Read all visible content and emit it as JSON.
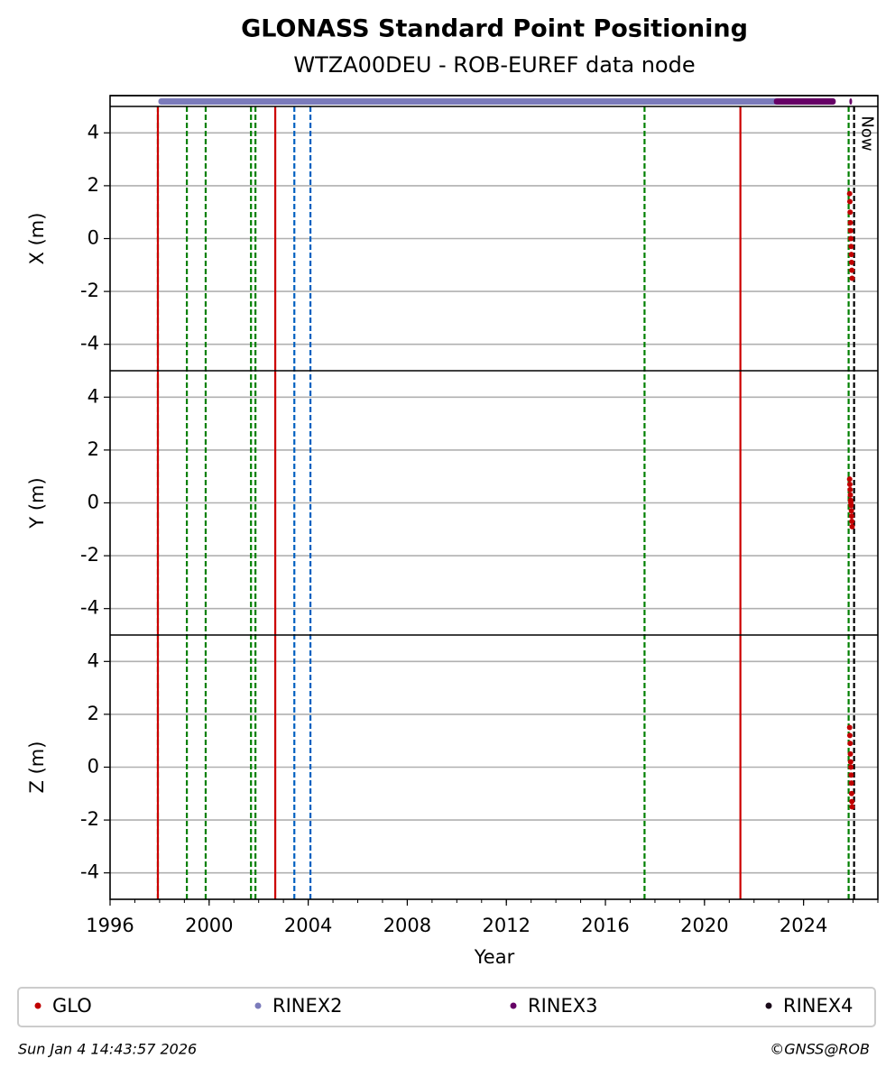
{
  "chart_data": {
    "type": "scatter",
    "title": "GLONASS Standard Point Positioning",
    "subtitle": "WTZA00DEU - ROB-EUREF data node",
    "xlabel": "Year",
    "xlim": [
      1996,
      2027
    ],
    "xticks": [
      1996,
      2000,
      2004,
      2008,
      2012,
      2016,
      2020,
      2024
    ],
    "x": [
      2025.86,
      2025.87,
      2025.88,
      2025.89,
      2025.9,
      2025.91,
      2025.92,
      2025.93,
      2025.94,
      2025.95,
      2025.96
    ],
    "panels": [
      {
        "ylabel": "X (m)",
        "ylim": [
          -5,
          5
        ],
        "yticks": [
          -4,
          -2,
          0,
          2,
          4
        ],
        "values": [
          1.7,
          1.4,
          1.0,
          0.6,
          0.3,
          0.0,
          -0.3,
          -0.6,
          -0.9,
          -1.2,
          -1.5
        ]
      },
      {
        "ylabel": "Y (m)",
        "ylim": [
          -5,
          5
        ],
        "yticks": [
          -4,
          -2,
          0,
          2,
          4
        ],
        "values": [
          0.9,
          0.7,
          0.5,
          0.3,
          0.1,
          0.0,
          -0.1,
          -0.3,
          -0.5,
          -0.7,
          -0.9
        ]
      },
      {
        "ylabel": "Z (m)",
        "ylim": [
          -5,
          5
        ],
        "yticks": [
          -4,
          -2,
          0,
          2,
          4
        ],
        "values": [
          1.5,
          1.2,
          0.9,
          0.5,
          0.2,
          0.0,
          -0.3,
          -0.6,
          -1.0,
          -1.3,
          -1.5
        ]
      }
    ],
    "series": [
      {
        "name": "GLO",
        "color": "#c00000"
      },
      {
        "name": "RINEX2",
        "color": "#7b7bbb",
        "ranges": [
          [
            1997.95,
            2022.95
          ]
        ]
      },
      {
        "name": "RINEX3",
        "color": "#660066",
        "ranges": [
          [
            2022.8,
            2025.3
          ],
          [
            2025.85,
            2025.95
          ]
        ]
      },
      {
        "name": "RINEX4",
        "color": "#1a0a1a",
        "ranges": []
      }
    ],
    "events": [
      {
        "x": 1997.93,
        "color": "#008000",
        "style": "dashed"
      },
      {
        "x": 1997.93,
        "color": "#cc0000",
        "style": "solid"
      },
      {
        "x": 1999.1,
        "color": "#008000",
        "style": "dashed"
      },
      {
        "x": 1999.86,
        "color": "#008000",
        "style": "dashed"
      },
      {
        "x": 2001.69,
        "color": "#008000",
        "style": "dashed"
      },
      {
        "x": 2001.87,
        "color": "#008000",
        "style": "dashed"
      },
      {
        "x": 2002.67,
        "color": "#cc0000",
        "style": "solid"
      },
      {
        "x": 2003.44,
        "color": "#0060c0",
        "style": "dashed"
      },
      {
        "x": 2004.09,
        "color": "#0060c0",
        "style": "dashed"
      },
      {
        "x": 2017.58,
        "color": "#008000",
        "style": "dashed"
      },
      {
        "x": 2021.45,
        "color": "#cc0000",
        "style": "solid"
      },
      {
        "x": 2025.82,
        "color": "#008000",
        "style": "dashed"
      },
      {
        "x": 2026.04,
        "color": "#000000",
        "style": "dashed",
        "label": "Now"
      }
    ],
    "grid": true,
    "legend": "bottom",
    "footer_left": "Sun Jan  4 14:43:57 2026",
    "footer_right": "©GNSS@ROB"
  }
}
